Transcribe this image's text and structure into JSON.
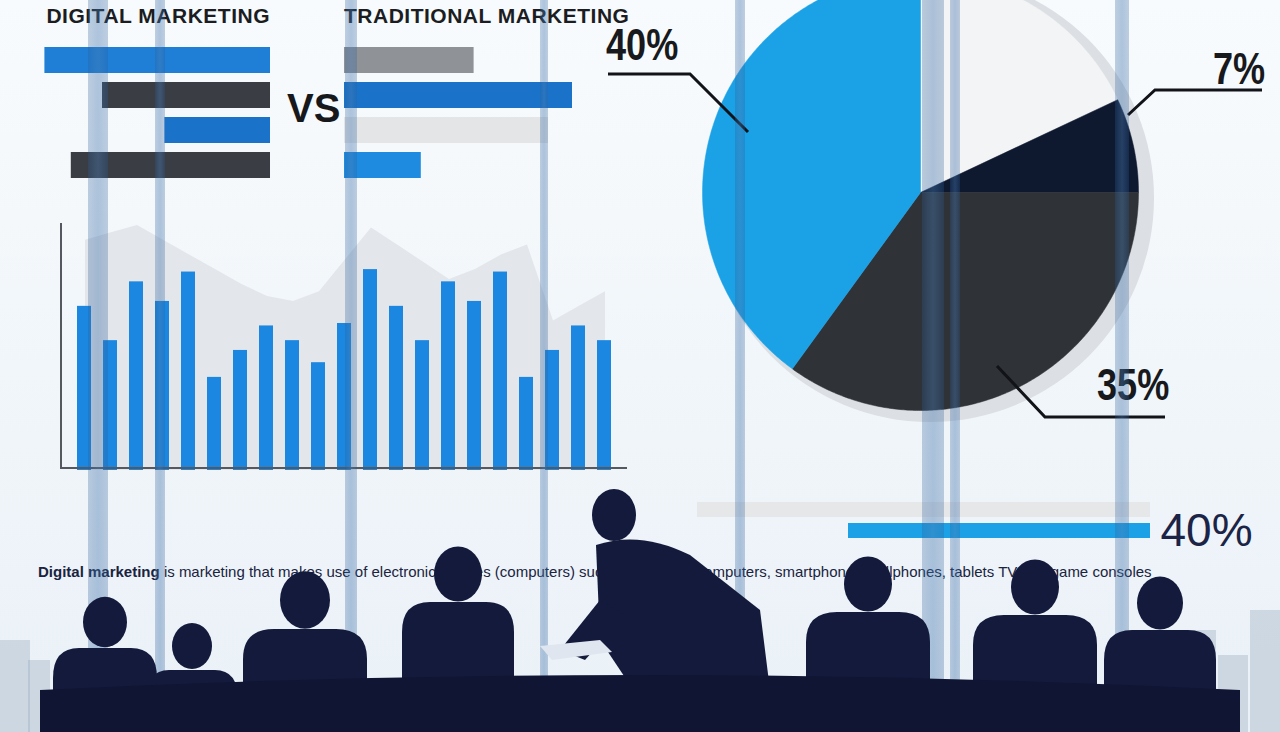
{
  "chart_data": [
    {
      "type": "bar",
      "orientation": "horizontal",
      "tick_labels": false,
      "xlim": [
        0,
        100
      ],
      "annotations": [
        "VS"
      ],
      "categories": [
        null,
        null,
        null,
        null
      ],
      "series": [
        {
          "name": "DIGITAL MARKETING",
          "values": [
            94,
            70,
            44,
            83
          ],
          "colors": [
            "#1f7fd6",
            "#3a3d44",
            "#1a73c9",
            "#3a3d44"
          ]
        },
        {
          "name": "TRADITIONAL MARKETING",
          "values": [
            54,
            95,
            85,
            32
          ],
          "colors": [
            "#8f9297",
            "#1a73c9",
            "#e4e5e7",
            "#1f8be0"
          ]
        }
      ]
    },
    {
      "type": "bar",
      "tick_labels": false,
      "ylim": [
        0,
        100
      ],
      "categories": [
        null,
        null,
        null,
        null,
        null,
        null,
        null,
        null,
        null,
        null,
        null,
        null,
        null,
        null,
        null,
        null,
        null,
        null,
        null,
        null,
        null
      ],
      "series": [
        {
          "type": "area",
          "color": "#e3e6ea",
          "values": [
            94,
            97,
            100,
            94,
            88,
            82,
            76,
            71,
            69,
            73,
            86,
            99,
            92,
            85,
            78,
            82,
            88,
            92,
            61,
            67,
            73
          ]
        },
        {
          "type": "bar",
          "color": "#1b87e0",
          "values": [
            67,
            53,
            77,
            69,
            81,
            38,
            49,
            59,
            53,
            44,
            60,
            82,
            67,
            53,
            77,
            69,
            81,
            38,
            49,
            59,
            53
          ]
        }
      ]
    },
    {
      "type": "pie",
      "data_labels": true,
      "values": [
        18,
        7,
        35,
        40
      ],
      "value_labels": [
        null,
        "7%",
        "35%",
        "40%"
      ],
      "colors": [
        "#f3f4f5",
        "#0e1930",
        "#2f3237",
        "#1ba1e6"
      ]
    },
    {
      "type": "bar",
      "orientation": "horizontal",
      "tick_labels": false,
      "data_labels": true,
      "xlim": [
        0,
        60
      ],
      "categories": [
        null,
        null
      ],
      "values": [
        60,
        40
      ],
      "value_labels": [
        null,
        "40%"
      ],
      "colors": [
        "#e6e7e9",
        "#1da1e6"
      ]
    }
  ],
  "caption": [
    "Digital marketing",
    "is marketing that makes use of electronic devices (computers) such as personal computers, smartphones, cellphones, tablets TV and game consoles"
  ]
}
